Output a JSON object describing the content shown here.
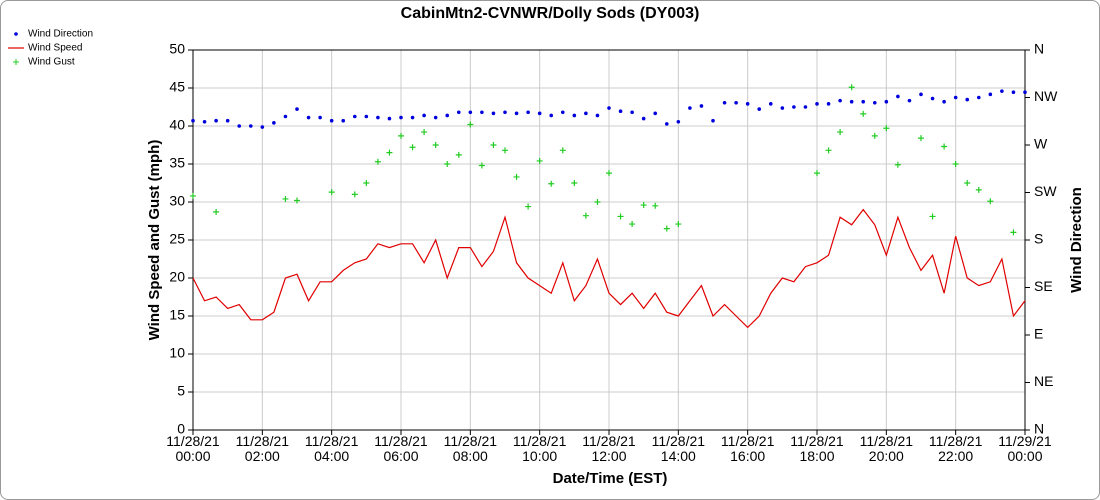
{
  "chart_data": {
    "type": "line",
    "title": "CabinMtn2-CVNWR/Dolly Sods (DY003)",
    "x_label": "Date/Time (EST)",
    "y_label": "Wind Speed and Gust (mph)",
    "y2_label": "Wind Direction",
    "grid": true,
    "legend": "top-left",
    "xlim": [
      0,
      1440
    ],
    "xticks": [
      {
        "value": 0,
        "label": "11/28/21\n00:00"
      },
      {
        "value": 120,
        "label": "11/28/21\n02:00"
      },
      {
        "value": 240,
        "label": "11/28/21\n04:00"
      },
      {
        "value": 360,
        "label": "11/28/21\n06:00"
      },
      {
        "value": 480,
        "label": "11/28/21\n08:00"
      },
      {
        "value": 600,
        "label": "11/28/21\n10:00"
      },
      {
        "value": 720,
        "label": "11/28/21\n12:00"
      },
      {
        "value": 840,
        "label": "11/28/21\n14:00"
      },
      {
        "value": 960,
        "label": "11/28/21\n16:00"
      },
      {
        "value": 1080,
        "label": "11/28/21\n18:00"
      },
      {
        "value": 1200,
        "label": "11/28/21\n20:00"
      },
      {
        "value": 1320,
        "label": "11/28/21\n22:00"
      },
      {
        "value": 1440,
        "label": "11/29/21\n00:00"
      }
    ],
    "ylim": [
      0,
      50
    ],
    "yticks": [
      0,
      5,
      10,
      15,
      20,
      25,
      30,
      35,
      40,
      45,
      50
    ],
    "y2lim": [
      0,
      360
    ],
    "y2ticks": [
      {
        "value": 0,
        "label": "N"
      },
      {
        "value": 45,
        "label": "NE"
      },
      {
        "value": 90,
        "label": "E"
      },
      {
        "value": 135,
        "label": "SE"
      },
      {
        "value": 180,
        "label": "S"
      },
      {
        "value": 225,
        "label": "SW"
      },
      {
        "value": 270,
        "label": "W"
      },
      {
        "value": 315,
        "label": "NW"
      },
      {
        "value": 360,
        "label": "N"
      }
    ],
    "x": [
      0,
      20,
      40,
      60,
      80,
      100,
      120,
      140,
      160,
      180,
      200,
      220,
      240,
      260,
      280,
      300,
      320,
      340,
      360,
      380,
      400,
      420,
      440,
      460,
      480,
      500,
      520,
      540,
      560,
      580,
      600,
      620,
      640,
      660,
      680,
      700,
      720,
      740,
      760,
      780,
      800,
      820,
      840,
      860,
      880,
      900,
      920,
      940,
      960,
      980,
      1000,
      1020,
      1040,
      1060,
      1080,
      1100,
      1120,
      1140,
      1160,
      1180,
      1200,
      1220,
      1240,
      1260,
      1280,
      1300,
      1320,
      1340,
      1360,
      1380,
      1400,
      1420,
      1440
    ],
    "series": [
      {
        "name": "Wind Direction",
        "color": "#0000dd",
        "marker": "dot",
        "axis": "y2",
        "values": [
          293,
          292,
          293,
          293,
          288,
          288,
          287,
          291,
          297,
          304,
          296,
          296,
          293,
          293,
          297,
          297,
          296,
          295,
          296,
          296,
          298,
          296,
          298,
          301,
          301,
          301,
          300,
          301,
          300,
          301,
          300,
          298,
          301,
          298,
          300,
          298,
          305,
          302,
          301,
          295,
          300,
          290,
          292,
          305,
          307,
          293,
          310,
          310,
          309,
          304,
          309,
          305,
          306,
          306,
          309,
          309,
          312,
          311,
          311,
          310,
          311,
          316,
          312,
          318,
          314,
          311,
          315,
          313,
          315,
          318,
          321,
          320,
          320
        ]
      },
      {
        "name": "Wind Speed",
        "color": "#e00000",
        "marker": "line",
        "axis": "y",
        "values": [
          20,
          17,
          17.5,
          16,
          16.5,
          14.5,
          14.5,
          15.5,
          20,
          20.5,
          17,
          19.5,
          19.5,
          21,
          22,
          22.5,
          24.5,
          24,
          24.5,
          24.5,
          22,
          25,
          20,
          24,
          24,
          21.5,
          23.5,
          28,
          22,
          20,
          19,
          18,
          22,
          17,
          19,
          22.5,
          18,
          16.5,
          18,
          16,
          18,
          15.5,
          15,
          17,
          19,
          15,
          16.5,
          15,
          13.5,
          15,
          18,
          20,
          19.5,
          21.5,
          22,
          23,
          28,
          27,
          29,
          27,
          23,
          28,
          24,
          21,
          23,
          18,
          25.5,
          20,
          19,
          19.5,
          22.5,
          15,
          17
        ]
      },
      {
        "name": "Wind Gust",
        "color": "#22cc22",
        "marker": "plus",
        "axis": "y",
        "values": [
          30.8,
          null,
          28.7,
          null,
          null,
          null,
          null,
          null,
          30.4,
          30.2,
          null,
          null,
          31.3,
          null,
          31,
          32.5,
          35.3,
          36.5,
          38.7,
          37.2,
          39.2,
          37.5,
          35,
          36.2,
          40.2,
          34.8,
          37.5,
          36.8,
          33.3,
          29.4,
          35.4,
          32.4,
          36.8,
          32.5,
          28.2,
          30,
          33.8,
          28.1,
          27.1,
          29.6,
          29.5,
          26.5,
          27.1,
          null,
          null,
          null,
          null,
          null,
          null,
          null,
          null,
          null,
          null,
          null,
          33.8,
          36.8,
          39.2,
          45.1,
          41.6,
          38.7,
          39.7,
          34.9,
          null,
          38.4,
          28.1,
          37.3,
          35,
          32.5,
          31.6,
          30.1,
          null,
          26,
          null
        ]
      }
    ]
  }
}
